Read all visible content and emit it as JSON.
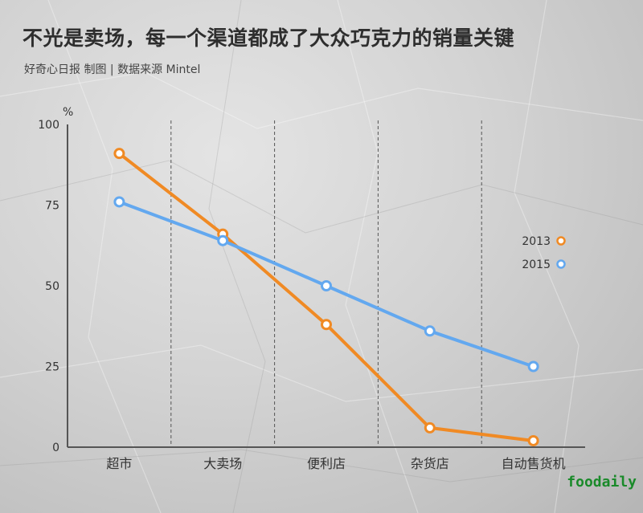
{
  "header": {
    "title": "不光是卖场，每一个渠道都成了大众巧克力的销量关键",
    "subtitle": "好奇心日报 制图 | 数据来源 Mintel"
  },
  "watermark": "foodaily",
  "chart_data": {
    "type": "line",
    "title": "不光是卖场，每一个渠道都成了大众巧克力的销量关键",
    "subtitle": "好奇心日报 制图 | 数据来源 Mintel",
    "ylabel": "%",
    "xlabel": "",
    "ylim": [
      0,
      100
    ],
    "yticks": [
      0,
      25,
      50,
      75,
      100
    ],
    "grid": "vertical dashed separators between categories",
    "legend_position": "right",
    "categories": [
      "超市",
      "大卖场",
      "便利店",
      "杂货店",
      "自动售货机"
    ],
    "series": [
      {
        "name": "2013",
        "color": "#f08a24",
        "values": [
          91,
          66,
          38,
          6,
          2
        ]
      },
      {
        "name": "2015",
        "color": "#63a8ef",
        "values": [
          76,
          64,
          50,
          36,
          25
        ]
      }
    ]
  }
}
